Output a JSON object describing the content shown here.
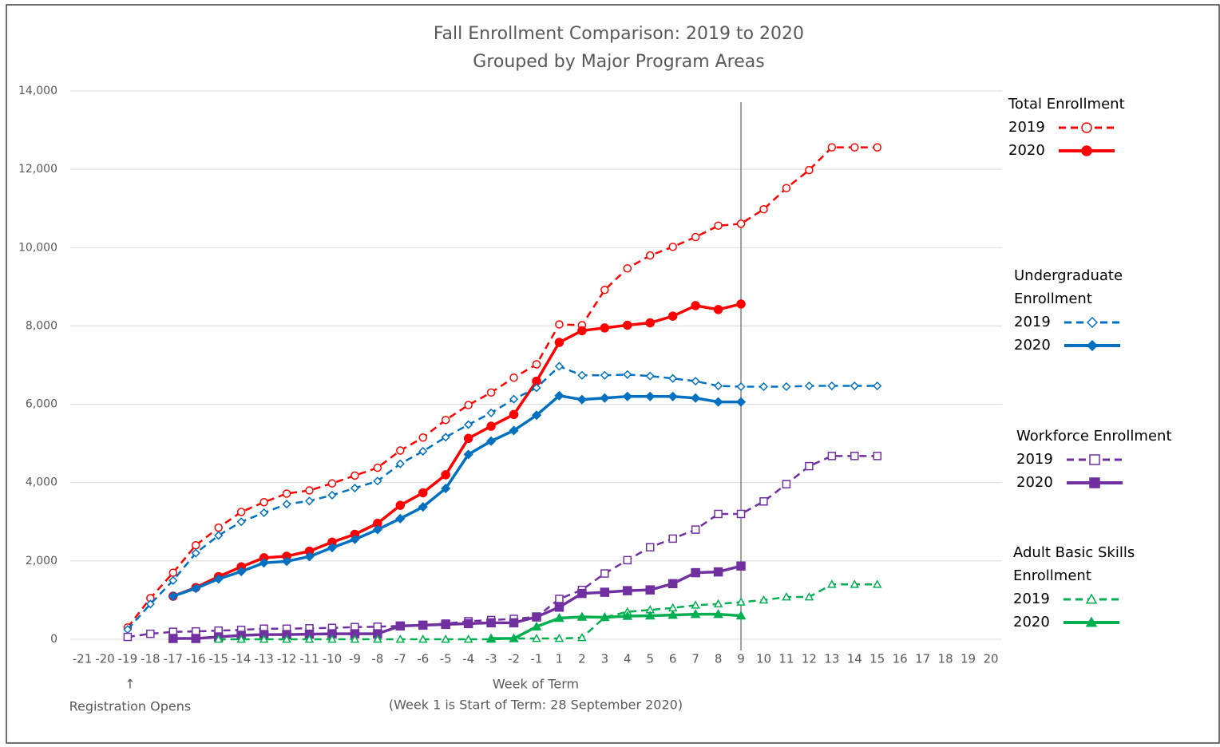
{
  "chart_data": {
    "type": "line",
    "title": "Fall Enrollment Comparison: 2019 to 2020",
    "subtitle": "Grouped by Major Program Areas",
    "x_label": "Week of Term",
    "x_sublabel": "(Week 1 is Start of Term: 28 September 2020)",
    "annotation": {
      "category": "-19",
      "arrow": "↑",
      "text": "Registration Opens"
    },
    "reference_line": "9",
    "categories": [
      "-21",
      "-20",
      "-19",
      "-18",
      "-17",
      "-16",
      "-15",
      "-14",
      "-13",
      "-12",
      "-11",
      "-10",
      "-9",
      "-8",
      "-7",
      "-6",
      "-5",
      "-4",
      "-3",
      "-2",
      "-1",
      "1",
      "2",
      "3",
      "4",
      "5",
      "6",
      "7",
      "8",
      "9",
      "10",
      "11",
      "12",
      "13",
      "14",
      "15",
      "16",
      "17",
      "18",
      "19",
      "20"
    ],
    "ylim": [
      0,
      14000
    ],
    "yticks": [
      0,
      {
        "value": 2000,
        "label": "2,000"
      },
      {
        "value": 4000,
        "label": "4,000"
      },
      {
        "value": 6000,
        "label": "6,000"
      },
      {
        "value": 8000,
        "label": "8,000"
      },
      {
        "value": 10000,
        "label": "10,000"
      },
      {
        "value": 12000,
        "label": "12,000"
      },
      {
        "value": 14000,
        "label": "14,000"
      }
    ],
    "grid": true,
    "groups": [
      {
        "title": [
          "Total Enrollment"
        ],
        "color": "#ff0000",
        "marker": "circle",
        "series": [
          {
            "name": "2019",
            "dashed": true,
            "filled": false,
            "values": [
              null,
              null,
              300,
              1050,
              1700,
              2400,
              2850,
              3250,
              3500,
              3720,
              3800,
              3980,
              4180,
              4380,
              4820,
              5150,
              5600,
              5980,
              6300,
              6680,
              7020,
              8040,
              8020,
              8920,
              9470,
              9800,
              10020,
              10270,
              10560,
              10610,
              10980,
              11520,
              11980,
              12560,
              12560,
              12560,
              null,
              null,
              null,
              null,
              null
            ]
          },
          {
            "name": "2020",
            "dashed": false,
            "filled": true,
            "values": [
              null,
              null,
              null,
              null,
              1100,
              1320,
              1600,
              1850,
              2080,
              2120,
              2250,
              2480,
              2680,
              2960,
              3420,
              3740,
              4200,
              5130,
              5440,
              5740,
              6590,
              7580,
              7880,
              7950,
              8020,
              8080,
              8250,
              8520,
              8420,
              8560,
              null,
              null,
              null,
              null,
              null,
              null,
              null,
              null,
              null,
              null,
              null
            ]
          }
        ]
      },
      {
        "title": [
          "Undergraduate",
          "Enrollment"
        ],
        "color": "#0070c0",
        "marker": "diamond",
        "series": [
          {
            "name": "2019",
            "dashed": true,
            "filled": false,
            "values": [
              null,
              null,
              250,
              900,
              1500,
              2200,
              2650,
              3000,
              3230,
              3450,
              3530,
              3680,
              3860,
              4040,
              4480,
              4800,
              5160,
              5480,
              5780,
              6130,
              6420,
              6970,
              6740,
              6740,
              6760,
              6720,
              6660,
              6590,
              6470,
              6450,
              6450,
              6450,
              6470,
              6470,
              6470,
              6470,
              null,
              null,
              null,
              null,
              null
            ]
          },
          {
            "name": "2020",
            "dashed": false,
            "filled": true,
            "values": [
              null,
              null,
              null,
              null,
              1100,
              1300,
              1540,
              1730,
              1950,
              1990,
              2110,
              2340,
              2550,
              2800,
              3080,
              3380,
              3850,
              4720,
              5060,
              5330,
              5720,
              6220,
              6120,
              6160,
              6200,
              6200,
              6200,
              6160,
              6060,
              6060,
              null,
              null,
              null,
              null,
              null,
              null,
              null,
              null,
              null,
              null,
              null
            ]
          }
        ]
      },
      {
        "title": [
          "Workforce Enrollment"
        ],
        "color": "#7030a0",
        "marker": "square",
        "series": [
          {
            "name": "2019",
            "dashed": true,
            "filled": false,
            "values": [
              null,
              null,
              60,
              140,
              190,
              200,
              220,
              240,
              270,
              270,
              280,
              290,
              310,
              320,
              340,
              360,
              400,
              460,
              490,
              520,
              570,
              1030,
              1260,
              1680,
              2020,
              2350,
              2570,
              2800,
              3200,
              3200,
              3520,
              3960,
              4420,
              4680,
              4680,
              4680,
              null,
              null,
              null,
              null,
              null
            ]
          },
          {
            "name": "2020",
            "dashed": false,
            "filled": true,
            "values": [
              null,
              null,
              null,
              null,
              20,
              20,
              60,
              100,
              120,
              120,
              130,
              140,
              140,
              140,
              340,
              360,
              380,
              400,
              420,
              420,
              570,
              820,
              1170,
              1200,
              1240,
              1260,
              1420,
              1700,
              1720,
              1870,
              null,
              null,
              null,
              null,
              null,
              null,
              null,
              null,
              null,
              null,
              null
            ]
          }
        ]
      },
      {
        "title": [
          "Adult Basic Skills",
          "Enrollment"
        ],
        "color": "#00b050",
        "marker": "triangle",
        "series": [
          {
            "name": "2019",
            "dashed": true,
            "filled": false,
            "values": [
              null,
              null,
              null,
              null,
              null,
              null,
              0,
              0,
              0,
              0,
              0,
              0,
              0,
              0,
              0,
              0,
              0,
              0,
              0,
              20,
              20,
              20,
              40,
              560,
              700,
              750,
              800,
              870,
              900,
              950,
              1000,
              1080,
              1080,
              1400,
              1400,
              1400,
              null,
              null,
              null,
              null,
              null
            ]
          },
          {
            "name": "2020",
            "dashed": false,
            "filled": true,
            "values": [
              null,
              null,
              null,
              null,
              null,
              null,
              null,
              null,
              null,
              null,
              null,
              null,
              null,
              null,
              null,
              null,
              null,
              null,
              20,
              20,
              320,
              540,
              570,
              560,
              590,
              600,
              620,
              640,
              640,
              600,
              null,
              null,
              null,
              null,
              null,
              null,
              null,
              null,
              null,
              null,
              null
            ]
          }
        ]
      }
    ]
  }
}
